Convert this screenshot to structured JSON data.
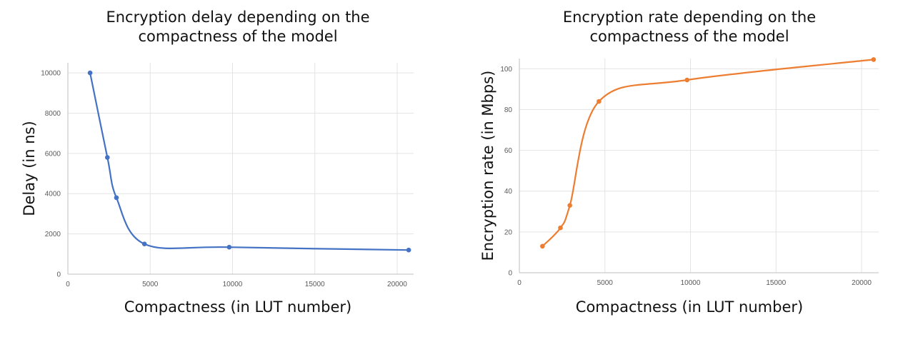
{
  "chart_data": [
    {
      "type": "line",
      "title": [
        "Encryption delay depending on the",
        "compactness of the model"
      ],
      "xlabel": "Compactness (in LUT number)",
      "ylabel": "Delay (in ns)",
      "xlim": [
        0,
        21000
      ],
      "ylim": [
        0,
        10500
      ],
      "xticks": [
        0,
        5000,
        10000,
        15000,
        20000
      ],
      "yticks": [
        0,
        2000,
        4000,
        6000,
        8000,
        10000
      ],
      "grid": true,
      "series": [
        {
          "color": "#4472c4",
          "x": [
            1350,
            2400,
            2950,
            4650,
            9800,
            20700
          ],
          "y": [
            10000,
            5800,
            3800,
            1500,
            1340,
            1200
          ]
        }
      ]
    },
    {
      "type": "line",
      "title": [
        "Encryption rate depending on the",
        "compactness of the model"
      ],
      "xlabel": "Compactness (in LUT number)",
      "ylabel": "Encryption rate (in Mbps)",
      "xlim": [
        0,
        21000
      ],
      "ylim": [
        0,
        105
      ],
      "xticks": [
        0,
        5000,
        10000,
        15000,
        20000
      ],
      "yticks": [
        0,
        20,
        40,
        60,
        80,
        100
      ],
      "grid": true,
      "series": [
        {
          "color": "#ed7d31",
          "x": [
            1350,
            2400,
            2950,
            4650,
            9800,
            20700
          ],
          "y": [
            13,
            22,
            33,
            84,
            94.5,
            104.5
          ]
        }
      ]
    }
  ]
}
